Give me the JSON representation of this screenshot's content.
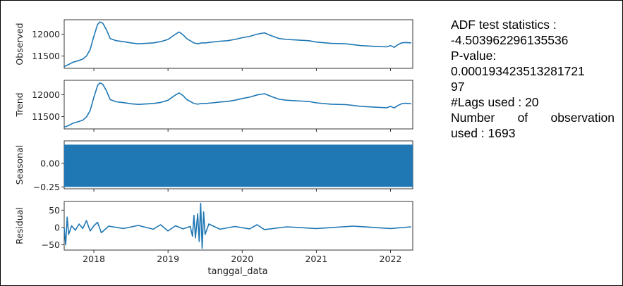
{
  "chart_data": [
    {
      "type": "line",
      "panel": "observed",
      "ylabel": "Observed",
      "ylim": [
        11220,
        12330
      ],
      "yticks": [
        11500,
        12000
      ],
      "ytick_labels": [
        "11500",
        "12000"
      ],
      "x": [
        2017.6,
        2017.65,
        2017.72,
        2017.8,
        2017.85,
        2017.9,
        2017.95,
        2018.0,
        2018.05,
        2018.08,
        2018.12,
        2018.17,
        2018.22,
        2018.3,
        2018.4,
        2018.5,
        2018.6,
        2018.7,
        2018.8,
        2018.9,
        2019.0,
        2019.1,
        2019.15,
        2019.2,
        2019.25,
        2019.3,
        2019.35,
        2019.4,
        2019.45,
        2019.5,
        2019.6,
        2019.7,
        2019.8,
        2019.9,
        2020.0,
        2020.1,
        2020.2,
        2020.3,
        2020.4,
        2020.5,
        2020.6,
        2020.7,
        2020.8,
        2020.9,
        2021.0,
        2021.2,
        2021.4,
        2021.5,
        2021.6,
        2021.8,
        2021.95,
        2022.0,
        2022.05,
        2022.1,
        2022.15,
        2022.2,
        2022.28
      ],
      "values": [
        11260,
        11300,
        11360,
        11400,
        11430,
        11500,
        11650,
        11950,
        12220,
        12280,
        12250,
        12100,
        11900,
        11850,
        11830,
        11800,
        11780,
        11790,
        11800,
        11830,
        11880,
        12000,
        12050,
        11990,
        11900,
        11850,
        11800,
        11780,
        11800,
        11800,
        11820,
        11840,
        11850,
        11880,
        11920,
        11950,
        12000,
        12030,
        11960,
        11900,
        11880,
        11870,
        11860,
        11850,
        11820,
        11790,
        11780,
        11760,
        11740,
        11720,
        11710,
        11740,
        11700,
        11760,
        11800,
        11810,
        11800
      ]
    },
    {
      "type": "line",
      "panel": "trend",
      "ylabel": "Trend",
      "ylim": [
        11220,
        12330
      ],
      "yticks": [
        11500,
        12000
      ],
      "ytick_labels": [
        "11500",
        "12000"
      ],
      "x": [
        2017.6,
        2017.65,
        2017.72,
        2017.8,
        2017.85,
        2017.9,
        2017.95,
        2018.0,
        2018.05,
        2018.08,
        2018.12,
        2018.17,
        2018.22,
        2018.3,
        2018.4,
        2018.5,
        2018.6,
        2018.7,
        2018.8,
        2018.9,
        2019.0,
        2019.1,
        2019.15,
        2019.2,
        2019.25,
        2019.3,
        2019.35,
        2019.4,
        2019.45,
        2019.5,
        2019.6,
        2019.7,
        2019.8,
        2019.9,
        2020.0,
        2020.1,
        2020.2,
        2020.3,
        2020.4,
        2020.5,
        2020.6,
        2020.7,
        2020.8,
        2020.9,
        2021.0,
        2021.2,
        2021.4,
        2021.5,
        2021.6,
        2021.8,
        2021.95,
        2022.0,
        2022.05,
        2022.1,
        2022.15,
        2022.2,
        2022.28
      ],
      "values": [
        11260,
        11290,
        11350,
        11390,
        11420,
        11490,
        11640,
        11940,
        12210,
        12270,
        12240,
        12090,
        11890,
        11840,
        11820,
        11795,
        11780,
        11790,
        11800,
        11825,
        11875,
        11995,
        12040,
        11985,
        11895,
        11845,
        11800,
        11785,
        11800,
        11800,
        11815,
        11835,
        11845,
        11875,
        11915,
        11945,
        11995,
        12025,
        11955,
        11895,
        11875,
        11865,
        11855,
        11845,
        11815,
        11785,
        11775,
        11755,
        11735,
        11715,
        11705,
        11735,
        11700,
        11755,
        11795,
        11805,
        11795
      ]
    },
    {
      "type": "area",
      "panel": "seasonal",
      "ylabel": "Seasonal",
      "ylim": [
        -0.27,
        0.24
      ],
      "yticks": [
        -0.25,
        0.0
      ],
      "ytick_labels": [
        "−0.25",
        "0.00"
      ],
      "x_range": [
        2017.6,
        2022.3
      ],
      "band": [
        -0.25,
        0.2
      ]
    },
    {
      "type": "line",
      "panel": "residual",
      "ylabel": "Residual",
      "ylim": [
        -65,
        75
      ],
      "yticks": [
        -50,
        0,
        50
      ],
      "ytick_labels": [
        "−50",
        "0",
        "50"
      ],
      "x": [
        2017.6,
        2017.62,
        2017.64,
        2017.66,
        2017.7,
        2017.75,
        2017.8,
        2017.85,
        2017.9,
        2017.95,
        2018.0,
        2018.05,
        2018.1,
        2018.2,
        2018.4,
        2018.6,
        2018.8,
        2018.9,
        2019.0,
        2019.1,
        2019.2,
        2019.3,
        2019.33,
        2019.35,
        2019.37,
        2019.4,
        2019.42,
        2019.44,
        2019.46,
        2019.48,
        2019.5,
        2019.55,
        2019.7,
        2019.9,
        2020.1,
        2020.2,
        2020.3,
        2020.6,
        2021.0,
        2021.5,
        2022.0,
        2022.28
      ],
      "values": [
        0,
        -50,
        30,
        -20,
        5,
        -8,
        10,
        -3,
        20,
        -10,
        5,
        15,
        -15,
        4,
        -3,
        6,
        -5,
        8,
        -10,
        5,
        -4,
        3,
        -25,
        35,
        -30,
        40,
        -40,
        70,
        -60,
        45,
        -20,
        10,
        -5,
        3,
        -4,
        8,
        -6,
        2,
        -3,
        4,
        -3,
        2
      ]
    }
  ],
  "x_axis": {
    "label": "tanggal_data",
    "range": [
      2017.6,
      2022.3
    ],
    "ticks": [
      2018,
      2019,
      2020,
      2021,
      2022
    ],
    "tick_labels": [
      "2018",
      "2019",
      "2020",
      "2021",
      "2022"
    ]
  },
  "series_color": "#1f77b4",
  "adf": {
    "line1": "ADF test statistics :",
    "line2": "-4.503962296135536",
    "line3": "P-value:",
    "line4": "0.000193423513281721",
    "line5": "97",
    "line6": "#Lags used : 20",
    "line7_words": [
      "Number",
      "of",
      "observation"
    ],
    "line8": "used : 1693"
  }
}
